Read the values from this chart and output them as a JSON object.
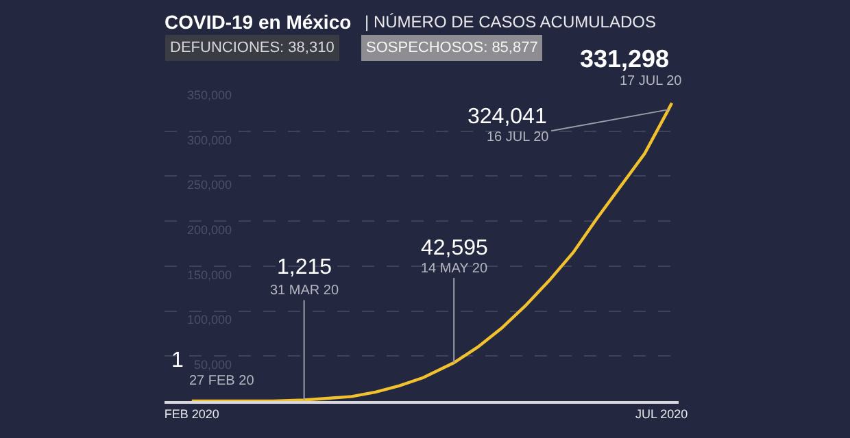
{
  "chart_data": {
    "type": "line",
    "title": "COVID-19 en México",
    "subtitle": "| NÚMERO DE CASOS ACUMULADOS",
    "x": [
      "2020-02-27",
      "2020-03-07",
      "2020-03-15",
      "2020-03-22",
      "2020-03-31",
      "2020-04-07",
      "2020-04-14",
      "2020-04-21",
      "2020-04-28",
      "2020-05-05",
      "2020-05-14",
      "2020-05-21",
      "2020-05-28",
      "2020-06-04",
      "2020-06-11",
      "2020-06-18",
      "2020-06-25",
      "2020-07-02",
      "2020-07-09",
      "2020-07-16",
      "2020-07-17"
    ],
    "series": [
      {
        "color": "#f2c12e",
        "values": [
          1,
          0,
          0,
          0,
          1215,
          3000,
          5000,
          10000,
          17000,
          26000,
          42595,
          60000,
          81000,
          106000,
          134000,
          165000,
          203000,
          239000,
          275000,
          324041,
          331298
        ]
      }
    ],
    "annotations": [
      "DEFUNCIONES: 38,310",
      "SOSPECHOSOS: 85,877",
      {
        "text": "1",
        "x": "2020-02-27",
        "y": 1
      },
      {
        "text": "27 FEB 20",
        "x": "2020-02-27",
        "y": 1
      },
      {
        "text": "1,215",
        "x": "2020-03-31",
        "y": 1215
      },
      {
        "text": "31 MAR 20",
        "x": "2020-03-31",
        "y": 1215
      },
      {
        "text": "42,595",
        "x": "2020-05-14",
        "y": 42595
      },
      {
        "text": "14 MAY 20",
        "x": "2020-05-14",
        "y": 42595
      },
      {
        "text": "324,041",
        "x": "2020-07-16",
        "y": 324041
      },
      {
        "text": "16 JUL 20",
        "x": "2020-07-16",
        "y": 324041
      },
      {
        "text": "331,298",
        "x": "2020-07-17",
        "y": 331298
      },
      {
        "text": "17 JUL 20",
        "x": "2020-07-17",
        "y": 331298
      }
    ],
    "xlim": [
      "2020-02-19",
      "2020-07-19"
    ],
    "xticks": [
      {
        "value": "2020-02-27",
        "label": "FEB 2020"
      },
      {
        "value": "2020-07-14",
        "label": "JUL 2020"
      }
    ],
    "ylim": [
      0,
      350000
    ],
    "yticks": [
      {
        "value": 50000,
        "label": "50,000"
      },
      {
        "value": 100000,
        "label": "100,000"
      },
      {
        "value": 150000,
        "label": "150,000"
      },
      {
        "value": 200000,
        "label": "200,000"
      },
      {
        "value": 250000,
        "label": "250,000"
      },
      {
        "value": 300000,
        "label": "300,000"
      },
      {
        "value": 350000,
        "label": "350,000"
      }
    ],
    "grid": "y",
    "marker": "none",
    "line_style": "solid"
  }
}
